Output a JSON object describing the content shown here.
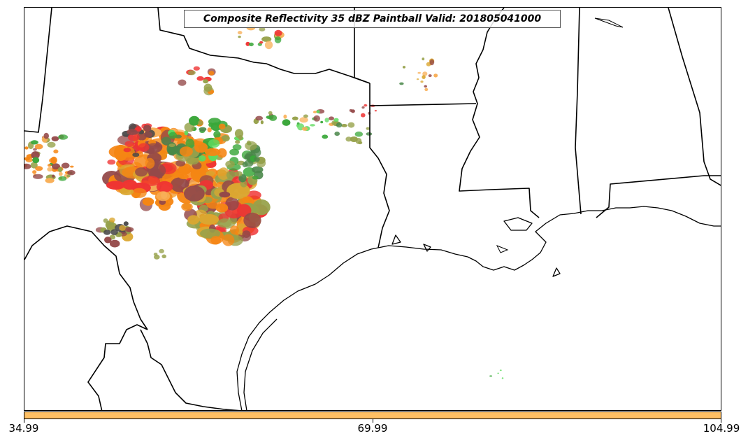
{
  "title": "Composite Reflectivity 35 dBZ Paintball Valid: 201805041000",
  "colorbar": {
    "color": "#ffc064",
    "ticks": [
      "34.99",
      "69.99",
      "104.99"
    ]
  },
  "colors": {
    "red": "#ee2222",
    "orange": "#f57c00",
    "light_orange": "#f8a94a",
    "olive": "#8e9a3c",
    "dark_red": "#8b3a3a",
    "green": "#2aa02a",
    "light_green": "#52d852",
    "dark_green": "#3b7d3b",
    "dark_gray": "#3a3a3a",
    "gold": "#d8a020"
  }
}
